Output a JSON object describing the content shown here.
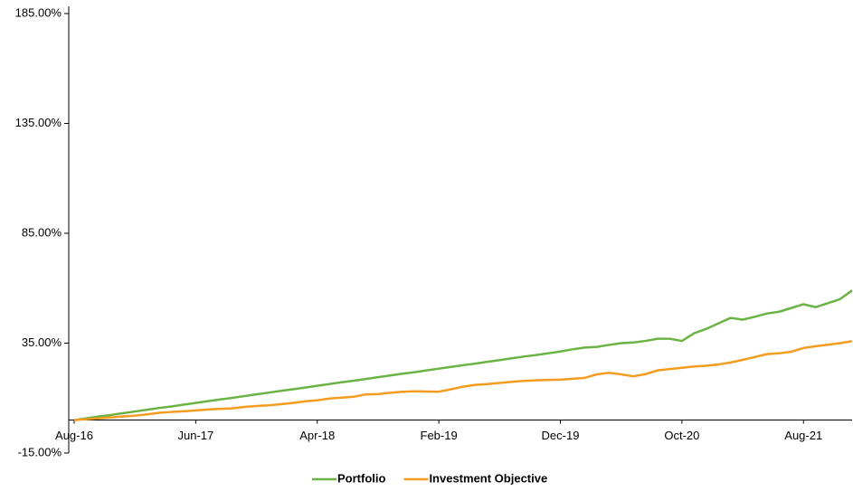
{
  "chart_data": {
    "type": "line",
    "categories": [
      "Aug-16",
      null,
      null,
      null,
      null,
      null,
      null,
      null,
      null,
      null,
      "Jun-17",
      null,
      null,
      null,
      null,
      null,
      null,
      null,
      null,
      null,
      "Apr-18",
      null,
      null,
      null,
      null,
      null,
      null,
      null,
      null,
      null,
      "Feb-19",
      null,
      null,
      null,
      null,
      null,
      null,
      null,
      null,
      null,
      "Dec-19",
      null,
      null,
      null,
      null,
      null,
      null,
      null,
      null,
      null,
      "Oct-20",
      null,
      null,
      null,
      null,
      null,
      null,
      null,
      null,
      null,
      "Aug-21",
      null,
      null,
      null,
      null
    ],
    "series": [
      {
        "name": "Portfolio",
        "color": "#6ab344",
        "values": [
          0,
          0.8,
          1.6,
          2.3,
          3.1,
          3.9,
          4.7,
          5.5,
          6.2,
          7.0,
          7.8,
          8.6,
          9.4,
          10.1,
          10.9,
          11.7,
          12.5,
          13.3,
          14.0,
          14.8,
          15.6,
          16.4,
          17.2,
          17.9,
          18.7,
          19.5,
          20.3,
          21.1,
          21.8,
          22.6,
          23.4,
          24.2,
          25.0,
          25.7,
          26.5,
          27.3,
          28.1,
          28.9,
          29.6,
          30.4,
          31.2,
          32.2,
          33.0,
          33.3,
          34.2,
          35.0,
          35.3,
          36.0,
          37.0,
          37.0,
          36.0,
          39.5,
          41.5,
          44.0,
          46.5,
          45.7,
          47.0,
          48.5,
          49.3,
          51.0,
          52.7,
          51.4,
          53.2,
          55.0,
          59.0
        ]
      },
      {
        "name": "Investment Objective",
        "color": "#f39c1f",
        "values": [
          0,
          0.4,
          0.8,
          1.2,
          1.6,
          2.0,
          2.6,
          3.3,
          3.7,
          4.0,
          4.4,
          4.8,
          5.1,
          5.3,
          6.0,
          6.4,
          6.7,
          7.2,
          7.8,
          8.5,
          9.0,
          9.8,
          10.2,
          10.6,
          11.7,
          11.8,
          12.4,
          12.9,
          13.1,
          13.0,
          12.9,
          14.0,
          15.2,
          16.0,
          16.4,
          16.9,
          17.4,
          17.8,
          18.1,
          18.3,
          18.4,
          18.8,
          19.2,
          20.8,
          21.5,
          20.8,
          19.9,
          20.9,
          22.6,
          23.2,
          23.8,
          24.4,
          24.7,
          25.3,
          26.2,
          27.4,
          28.7,
          30.0,
          30.4,
          31.1,
          32.8,
          33.6,
          34.3,
          35.0,
          35.9
        ]
      }
    ],
    "ylim": [
      -15,
      185
    ],
    "yticks": [
      {
        "value": -15,
        "label": "-15.00%"
      },
      {
        "value": 35,
        "label": "35.00%"
      },
      {
        "value": 85,
        "label": "85.00%"
      },
      {
        "value": 135,
        "label": "135.00%"
      },
      {
        "value": 185,
        "label": "185.00%"
      }
    ],
    "grid": false,
    "legend": "bottom"
  }
}
